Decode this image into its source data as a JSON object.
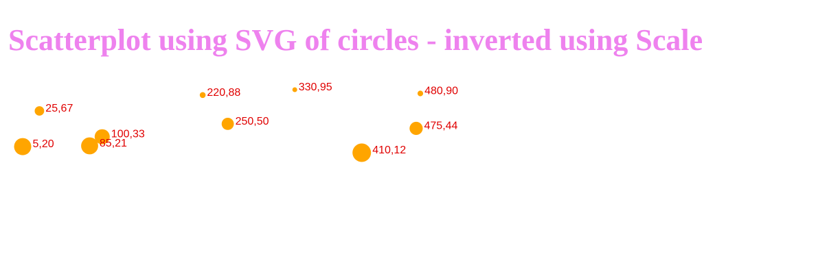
{
  "title": "Scatterplot using SVG of circles - inverted using Scale",
  "colors": {
    "title": "#ee82ee",
    "point": "#ffa500",
    "label": "#e00000"
  },
  "chart_data": {
    "type": "scatter",
    "title": "Scatterplot using SVG of circles - inverted using Scale",
    "xlabel": "",
    "ylabel": "",
    "grid": false,
    "points": [
      {
        "x": 5,
        "y": 20,
        "label": "5,20"
      },
      {
        "x": 480,
        "y": 90,
        "label": "480,90"
      },
      {
        "x": 250,
        "y": 50,
        "label": "250,50"
      },
      {
        "x": 100,
        "y": 33,
        "label": "100,33"
      },
      {
        "x": 330,
        "y": 95,
        "label": "330,95"
      },
      {
        "x": 410,
        "y": 12,
        "label": "410,12"
      },
      {
        "x": 475,
        "y": 44,
        "label": "475,44"
      },
      {
        "x": 25,
        "y": 67,
        "label": "25,67"
      },
      {
        "x": 85,
        "y": 21,
        "label": "85,21"
      },
      {
        "x": 220,
        "y": 88,
        "label": "220,88"
      }
    ]
  }
}
